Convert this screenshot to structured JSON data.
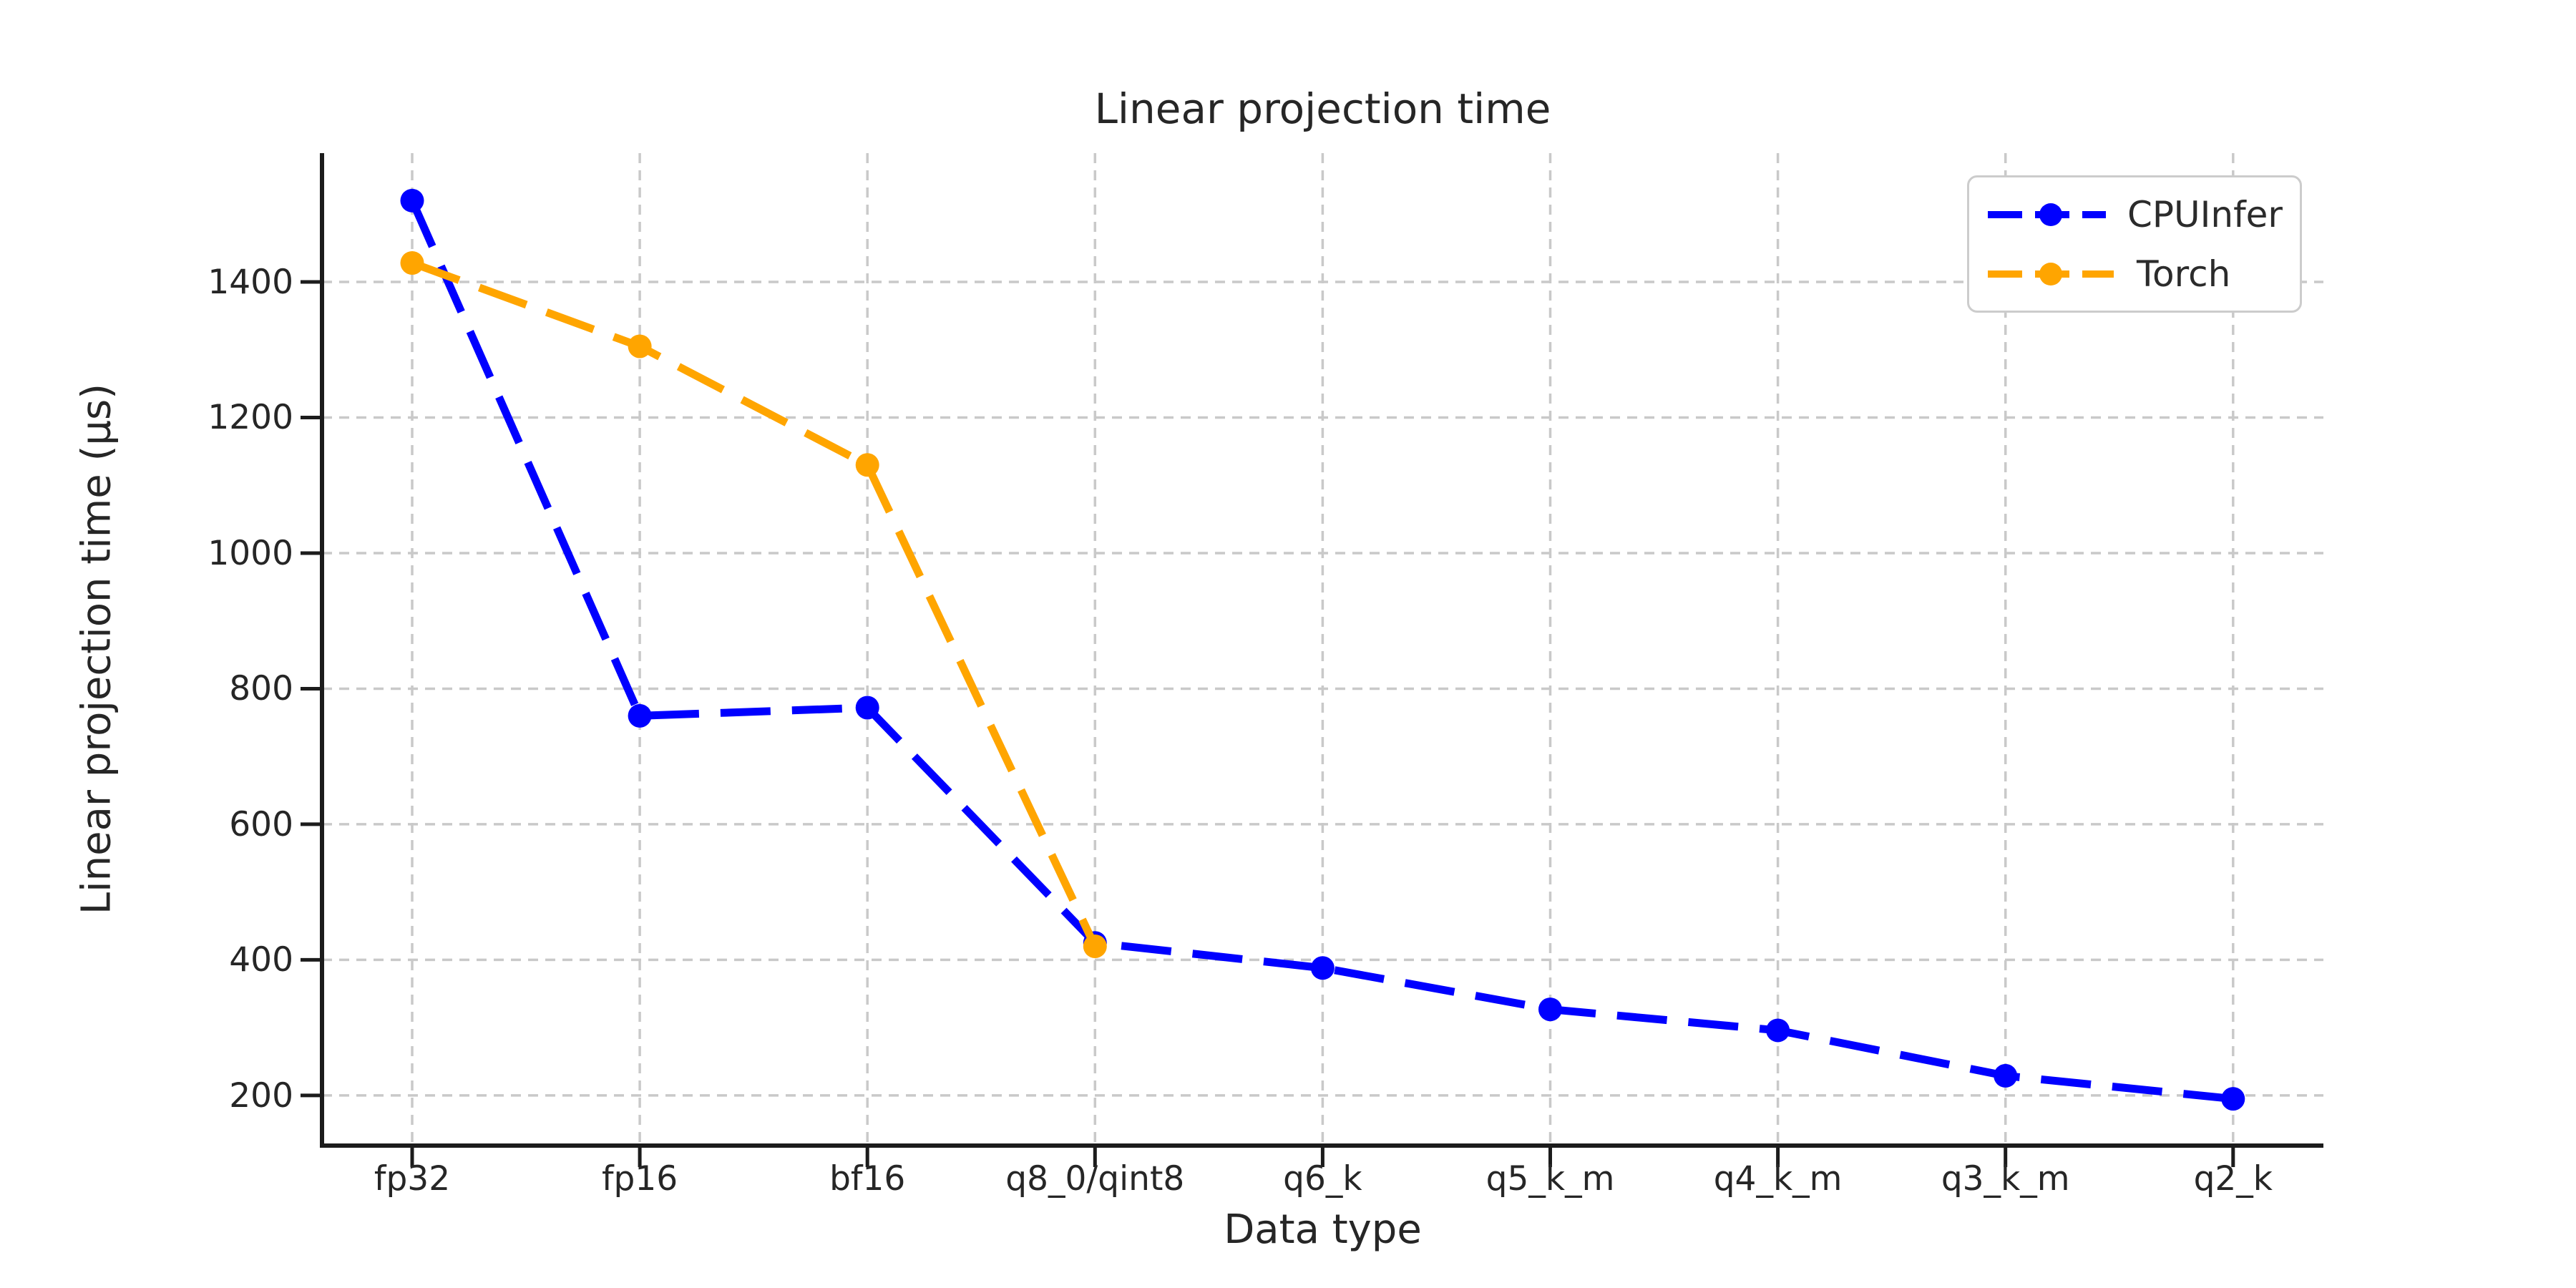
{
  "chart_data": {
    "type": "line",
    "title": "Linear projection time",
    "xlabel": "Data type",
    "ylabel": "Linear projection time (μs)",
    "categories": [
      "fp32",
      "fp16",
      "bf16",
      "q8_0/qint8",
      "q6_k",
      "q5_k_m",
      "q4_k_m",
      "q3_k_m",
      "q2_k"
    ],
    "series": [
      {
        "name": "CPUInfer",
        "color": "#0000ff",
        "values": [
          1520,
          760,
          772,
          425,
          388,
          327,
          296,
          229,
          195
        ]
      },
      {
        "name": "Torch",
        "color": "#ffa500",
        "values": [
          1428,
          1305,
          1130,
          420,
          null,
          null,
          null,
          null,
          null
        ]
      }
    ],
    "yticks": [
      200,
      400,
      600,
      800,
      1000,
      1200,
      1400
    ],
    "ylim": [
      126,
      1590
    ],
    "grid": true,
    "grid_style": "dashed",
    "line_style": "dashed",
    "marker": "circle",
    "legend_position": "upper right",
    "colors": {
      "background": "#ffffff",
      "grid": "#c9c9c9",
      "spine": "#1c1c1c",
      "text": "#262626"
    }
  }
}
